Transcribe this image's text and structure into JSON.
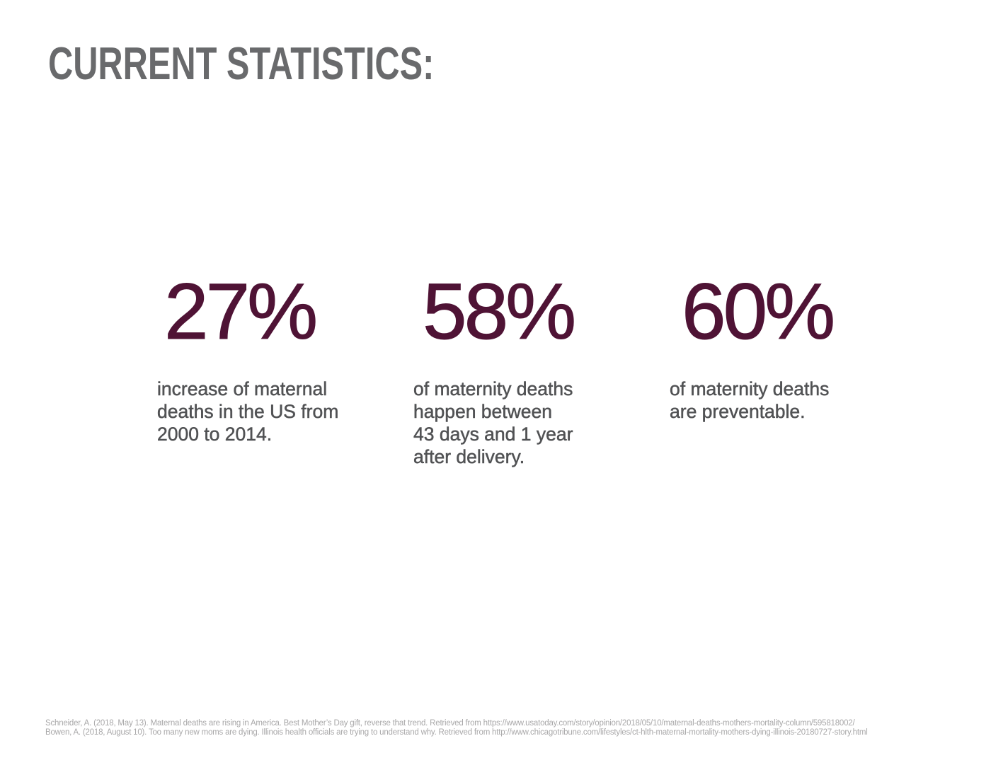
{
  "slide": {
    "title": "CURRENT STATISTICS:",
    "stats": [
      {
        "value": "27%",
        "description": "increase of maternal\ndeaths in the US from\n2000 to 2014."
      },
      {
        "value": "58%",
        "description": "of maternity deaths\nhappen between\n43 days and 1 year\nafter delivery."
      },
      {
        "value": "60%",
        "description": "of maternity deaths\nare preventable."
      }
    ],
    "citations": [
      "Schneider, A. (2018, May 13). Maternal deaths are rising in America. Best Mother’s Day gift, reverse that trend. Retrieved from https://www.usatoday.com/story/opinion/2018/05/10/maternal-deaths-mothers-mortality-column/595818002/",
      "Bowen, A. (2018, August 10). Too many new moms are dying. Illinois health officials are trying to understand why. Retrieved from http://www.chicagotribune.com/lifestyles/ct-hlth-maternal-mortality-mothers-dying-illinois-20180727-story.html"
    ],
    "colors": {
      "background": "#ffffff",
      "title_gray": "#696a6c",
      "stat_maroon": "#4f1335",
      "body_gray": "#515254",
      "citation_gray": "#a9a8a9"
    }
  }
}
